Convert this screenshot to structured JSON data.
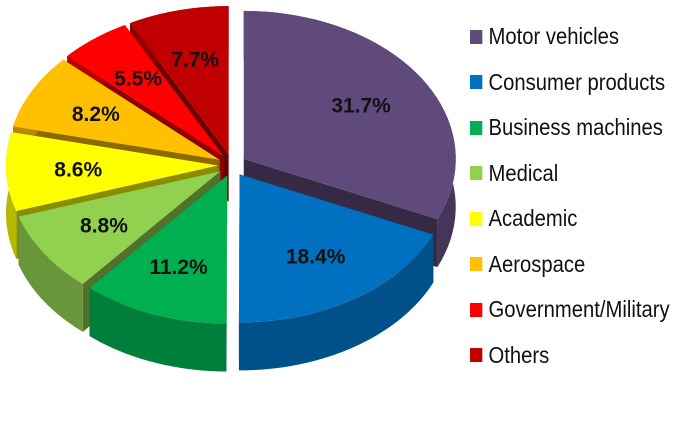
{
  "chart_data": {
    "type": "pie",
    "style": "3d-exploded",
    "categories": [
      "Motor vehicles",
      "Consumer products",
      "Business machines",
      "Medical",
      "Academic",
      "Aerospace",
      "Government/Military",
      "Others"
    ],
    "values": [
      31.7,
      18.4,
      11.2,
      8.8,
      8.6,
      8.2,
      5.5,
      7.7
    ],
    "labels": [
      "31.7%",
      "18.4%",
      "11.2%",
      "8.8%",
      "8.6%",
      "8.2%",
      "5.5%",
      "7.7%"
    ],
    "colors": [
      "#604A7B",
      "#0070C0",
      "#00B050",
      "#92D050",
      "#FFFF00",
      "#FFC000",
      "#FF0000",
      "#C00000"
    ],
    "legend_position": "right"
  }
}
